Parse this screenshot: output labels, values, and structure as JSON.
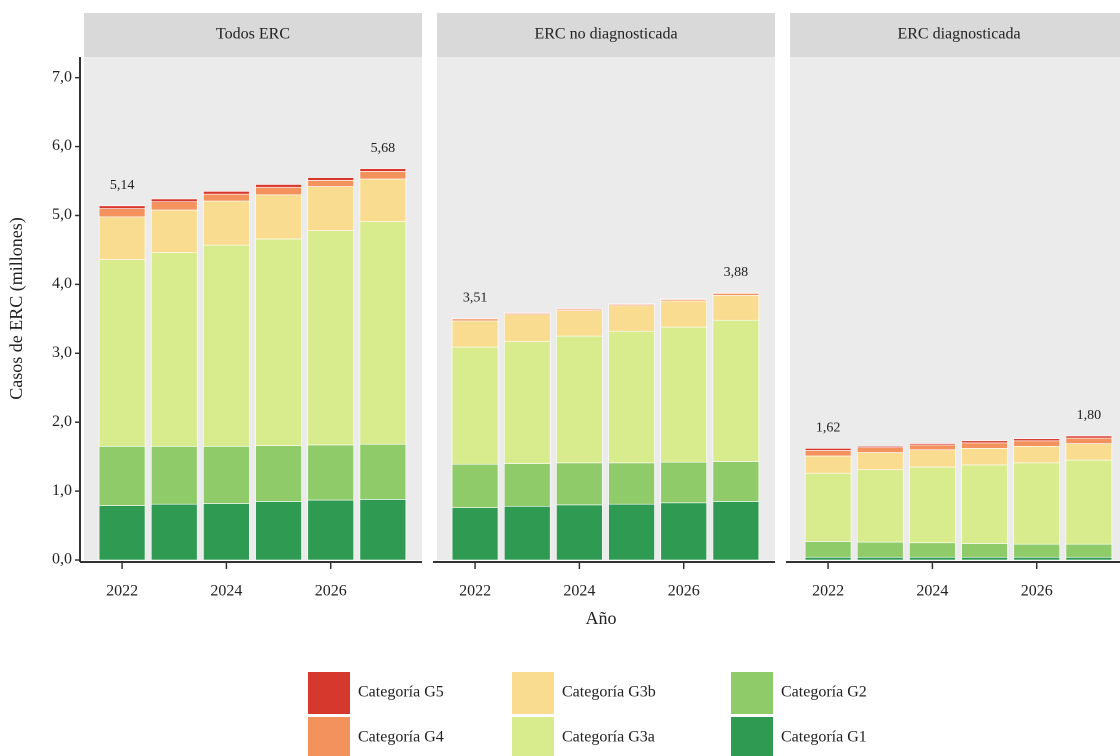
{
  "chart_data": [
    {
      "type": "stacked_bar",
      "title": "Todos ERC",
      "y_label": "Casos de ERC (millones)",
      "x": [
        2022,
        2023,
        2024,
        2025,
        2026,
        2027
      ],
      "xlim": [
        2021.27,
        2027.75
      ],
      "xticks": [
        2022,
        2024,
        2026
      ],
      "ylim": [
        0,
        7.3
      ],
      "yticks": [
        {
          "value": 0,
          "label": "0,0"
        },
        {
          "value": 1,
          "label": "1,0"
        },
        {
          "value": 2,
          "label": "2,0"
        },
        {
          "value": 3,
          "label": "3,0"
        },
        {
          "value": 4,
          "label": "4,0"
        },
        {
          "value": 5,
          "label": "5,0"
        },
        {
          "value": 6,
          "label": "6,0"
        },
        {
          "value": 7,
          "label": "7,0"
        }
      ],
      "series": [
        {
          "name": "Categoría G1",
          "color": "#2f9a52",
          "values": [
            0.79,
            0.81,
            0.82,
            0.85,
            0.87,
            0.88
          ]
        },
        {
          "name": "Categoría G2",
          "color": "#8fcb68",
          "values": [
            0.86,
            0.84,
            0.83,
            0.81,
            0.8,
            0.8
          ]
        },
        {
          "name": "Categoría G3a",
          "color": "#d8eb8d",
          "values": [
            2.71,
            2.81,
            2.92,
            3.0,
            3.11,
            3.23
          ]
        },
        {
          "name": "Categoría G3b",
          "color": "#f9dc8f",
          "values": [
            0.62,
            0.62,
            0.64,
            0.64,
            0.64,
            0.62
          ]
        },
        {
          "name": "Categoría G4",
          "color": "#f4925e",
          "values": [
            0.12,
            0.12,
            0.1,
            0.11,
            0.09,
            0.11
          ]
        },
        {
          "name": "Categoría G5",
          "color": "#d7382d",
          "values": [
            0.04,
            0.04,
            0.04,
            0.04,
            0.04,
            0.04
          ]
        }
      ],
      "totals": [
        5.14,
        null,
        null,
        null,
        null,
        5.68
      ],
      "total_labels": [
        "5,14",
        null,
        null,
        null,
        null,
        "5,68"
      ]
    },
    {
      "type": "stacked_bar",
      "title": "ERC no diagnosticada",
      "x_label": "Año",
      "x": [
        2022,
        2023,
        2024,
        2025,
        2026,
        2027
      ],
      "xlim": [
        2021.27,
        2027.75
      ],
      "xticks": [
        2022,
        2024,
        2026
      ],
      "ylim": [
        0,
        7.3
      ],
      "series": [
        {
          "values": [
            0.76,
            0.78,
            0.8,
            0.81,
            0.83,
            0.85
          ]
        },
        {
          "values": [
            0.63,
            0.62,
            0.61,
            0.6,
            0.59,
            0.58
          ]
        },
        {
          "values": [
            1.7,
            1.77,
            1.84,
            1.91,
            1.96,
            2.05
          ]
        },
        {
          "values": [
            0.38,
            0.39,
            0.37,
            0.37,
            0.38,
            0.36
          ]
        },
        {
          "values": [
            0.03,
            0.02,
            0.02,
            0.02,
            0.02,
            0.03
          ]
        },
        {
          "values": [
            0.01,
            0.01,
            0.01,
            0.01,
            0.01,
            0.01
          ]
        }
      ],
      "totals": [
        3.51,
        null,
        null,
        null,
        null,
        3.88
      ],
      "total_labels": [
        "3,51",
        null,
        null,
        null,
        null,
        "3,88"
      ]
    },
    {
      "type": "stacked_bar",
      "title": "ERC diagnosticada",
      "x": [
        2022,
        2023,
        2024,
        2025,
        2026,
        2027
      ],
      "xlim": [
        2021.27,
        2027.75
      ],
      "xticks": [
        2022,
        2024,
        2026
      ],
      "ylim": [
        0,
        7.3
      ],
      "series": [
        {
          "values": [
            0.04,
            0.04,
            0.04,
            0.04,
            0.04,
            0.04
          ]
        },
        {
          "values": [
            0.23,
            0.22,
            0.21,
            0.2,
            0.19,
            0.19
          ]
        },
        {
          "values": [
            0.99,
            1.05,
            1.1,
            1.14,
            1.18,
            1.22
          ]
        },
        {
          "values": [
            0.25,
            0.25,
            0.25,
            0.24,
            0.24,
            0.24
          ]
        },
        {
          "values": [
            0.08,
            0.07,
            0.07,
            0.08,
            0.08,
            0.08
          ]
        },
        {
          "values": [
            0.03,
            0.02,
            0.02,
            0.03,
            0.03,
            0.03
          ]
        }
      ],
      "totals": [
        1.62,
        null,
        null,
        null,
        null,
        1.8
      ],
      "total_labels": [
        "1,62",
        null,
        null,
        null,
        null,
        "1,80"
      ]
    }
  ]
}
